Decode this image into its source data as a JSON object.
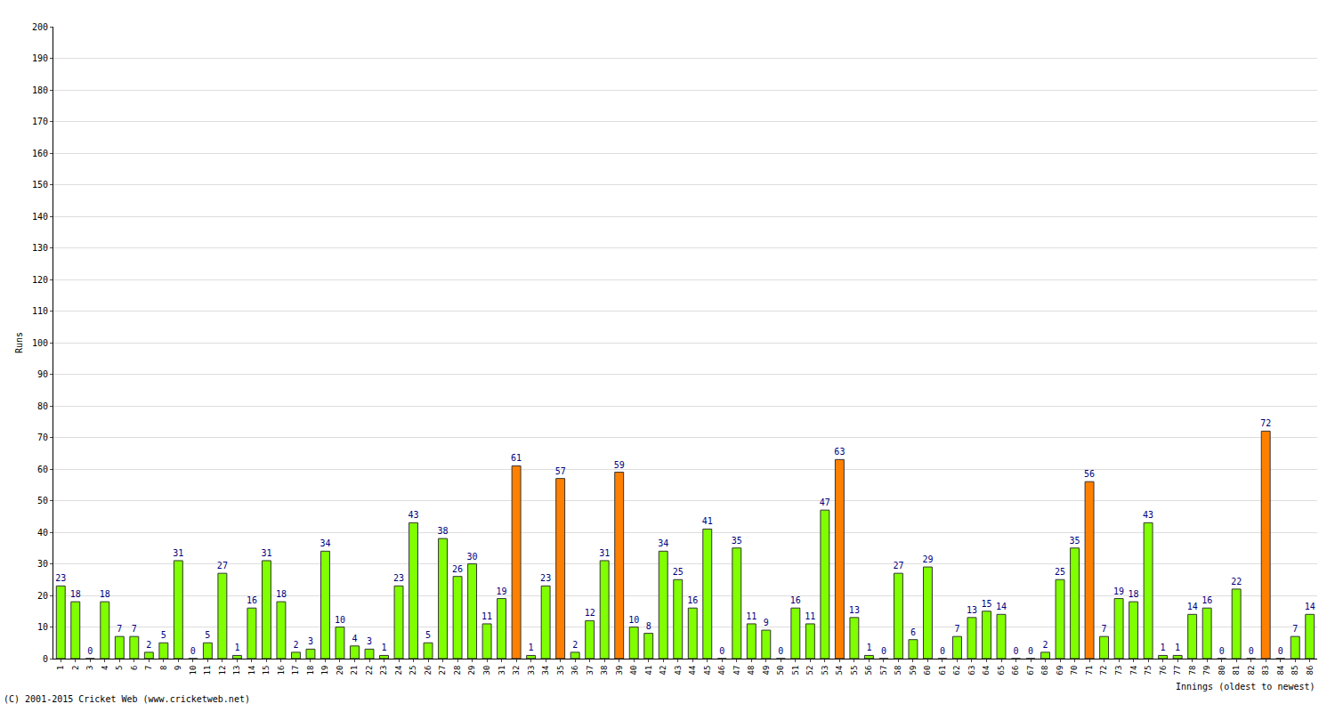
{
  "chart_data": {
    "type": "bar",
    "xlabel": "Innings (oldest to newest)",
    "ylabel": "Runs",
    "annotations": [
      "(C) 2001-2015 Cricket Web (www.cricketweb.net)"
    ],
    "categories": [
      "1",
      "2",
      "3",
      "4",
      "5",
      "6",
      "7",
      "8",
      "9",
      "10",
      "11",
      "12",
      "13",
      "14",
      "15",
      "16",
      "17",
      "18",
      "19",
      "20",
      "21",
      "22",
      "23",
      "24",
      "25",
      "26",
      "27",
      "28",
      "29",
      "30",
      "31",
      "32",
      "33",
      "34",
      "35",
      "36",
      "37",
      "38",
      "39",
      "40",
      "41",
      "42",
      "43",
      "44",
      "45",
      "46",
      "47",
      "48",
      "49",
      "50",
      "51",
      "52",
      "53",
      "54",
      "55",
      "56",
      "57",
      "58",
      "59",
      "60",
      "61",
      "62",
      "63",
      "64",
      "65",
      "66",
      "67",
      "68",
      "69",
      "70",
      "71",
      "72",
      "73",
      "74",
      "75",
      "76",
      "77",
      "78",
      "79",
      "80",
      "81",
      "82",
      "83",
      "84",
      "85",
      "86"
    ],
    "values": [
      23,
      18,
      0,
      18,
      7,
      7,
      2,
      5,
      31,
      0,
      5,
      27,
      1,
      16,
      31,
      18,
      2,
      3,
      34,
      10,
      4,
      3,
      1,
      23,
      43,
      5,
      38,
      26,
      30,
      11,
      19,
      61,
      1,
      23,
      57,
      2,
      12,
      31,
      59,
      10,
      8,
      34,
      25,
      16,
      41,
      0,
      35,
      11,
      9,
      0,
      16,
      11,
      47,
      63,
      13,
      1,
      0,
      27,
      6,
      29,
      0,
      7,
      13,
      15,
      14,
      0,
      0,
      2,
      25,
      35,
      56,
      7,
      19,
      18,
      43,
      1,
      1,
      14,
      16,
      0,
      22,
      0,
      72,
      0,
      7,
      14
    ],
    "colors": [
      "#80ff00",
      "#80ff00",
      "#80ff00",
      "#80ff00",
      "#80ff00",
      "#80ff00",
      "#80ff00",
      "#80ff00",
      "#80ff00",
      "#80ff00",
      "#80ff00",
      "#80ff00",
      "#80ff00",
      "#80ff00",
      "#80ff00",
      "#80ff00",
      "#80ff00",
      "#80ff00",
      "#80ff00",
      "#80ff00",
      "#80ff00",
      "#80ff00",
      "#80ff00",
      "#80ff00",
      "#80ff00",
      "#80ff00",
      "#80ff00",
      "#80ff00",
      "#80ff00",
      "#80ff00",
      "#80ff00",
      "#ff8000",
      "#80ff00",
      "#80ff00",
      "#ff8000",
      "#80ff00",
      "#80ff00",
      "#80ff00",
      "#ff8000",
      "#80ff00",
      "#80ff00",
      "#80ff00",
      "#80ff00",
      "#80ff00",
      "#80ff00",
      "#80ff00",
      "#80ff00",
      "#80ff00",
      "#80ff00",
      "#80ff00",
      "#80ff00",
      "#80ff00",
      "#80ff00",
      "#ff8000",
      "#80ff00",
      "#80ff00",
      "#80ff00",
      "#80ff00",
      "#80ff00",
      "#80ff00",
      "#80ff00",
      "#80ff00",
      "#80ff00",
      "#80ff00",
      "#80ff00",
      "#80ff00",
      "#80ff00",
      "#80ff00",
      "#80ff00",
      "#80ff00",
      "#ff8000",
      "#80ff00",
      "#80ff00",
      "#80ff00",
      "#80ff00",
      "#80ff00",
      "#80ff00",
      "#80ff00",
      "#80ff00",
      "#80ff00",
      "#80ff00",
      "#80ff00",
      "#ff8000",
      "#80ff00",
      "#80ff00",
      "#80ff00"
    ],
    "ylim": [
      0,
      200
    ],
    "yticks": [
      0,
      10,
      20,
      30,
      40,
      50,
      60,
      70,
      80,
      90,
      100,
      110,
      120,
      130,
      140,
      150,
      160,
      170,
      180,
      190,
      200
    ],
    "grid": true,
    "data_labels": true
  }
}
